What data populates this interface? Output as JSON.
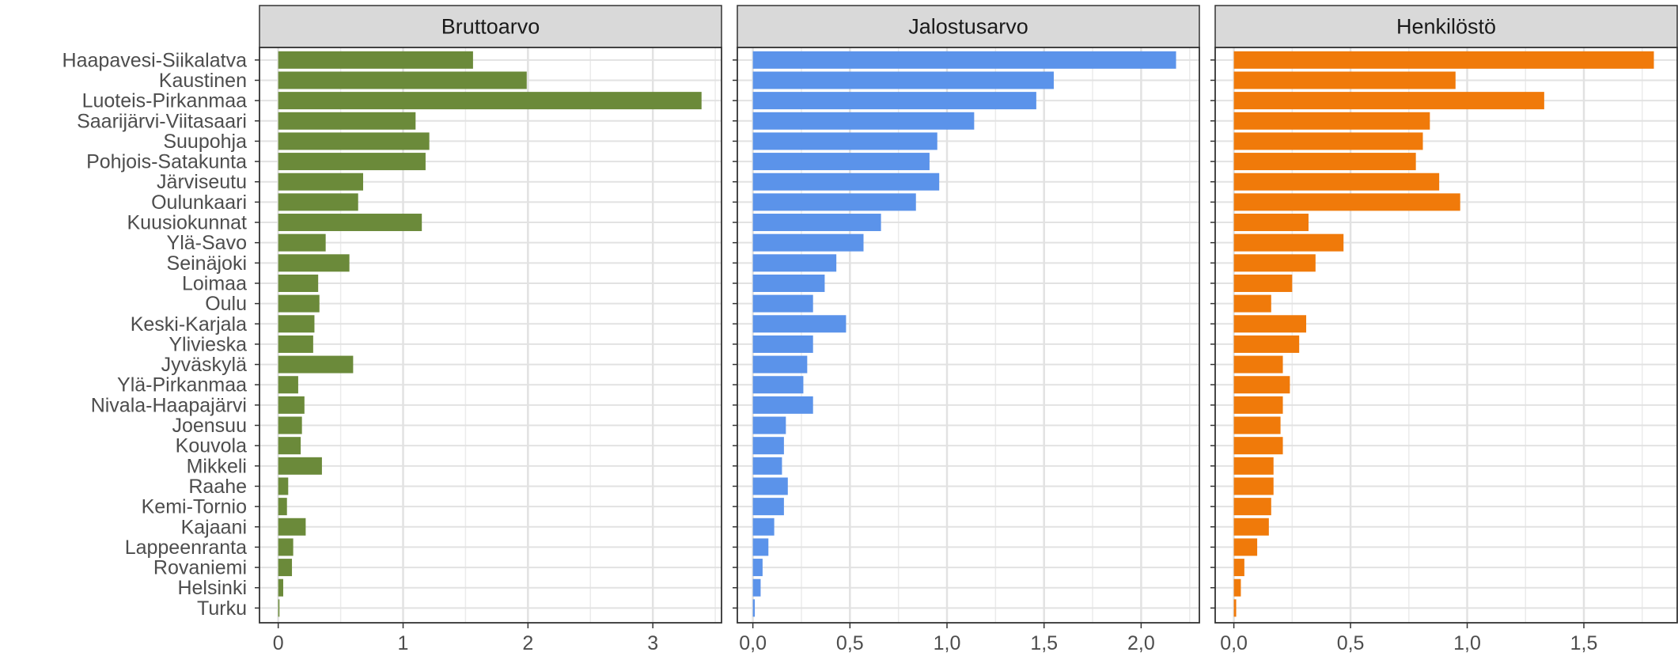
{
  "chart_data": {
    "type": "bar",
    "orientation": "horizontal",
    "layout": "faceted",
    "grid": true,
    "categories": [
      "Haapavesi-Siikalatva",
      "Kaustinen",
      "Luoteis-Pirkanmaa",
      "Saarijärvi-Viitasaari",
      "Suupohja",
      "Pohjois-Satakunta",
      "Järviseutu",
      "Oulunkaari",
      "Kuusiokunnat",
      "Ylä-Savo",
      "Seinäjoki",
      "Loimaa",
      "Oulu",
      "Keski-Karjala",
      "Ylivieska",
      "Jyväskylä",
      "Ylä-Pirkanmaa",
      "Nivala-Haapajärvi",
      "Joensuu",
      "Kouvola",
      "Mikkeli",
      "Raahe",
      "Kemi-Tornio",
      "Kajaani",
      "Lappeenranta",
      "Rovaniemi",
      "Helsinki",
      "Turku"
    ],
    "panels": [
      {
        "title": "Bruttoarvo",
        "color": "#6b8a3a",
        "xlim": [
          -0.15,
          3.55
        ],
        "ticks": [
          0,
          1,
          2,
          3
        ],
        "tick_labels": [
          "0",
          "1",
          "2",
          "3"
        ],
        "values": [
          1.56,
          1.99,
          3.39,
          1.1,
          1.21,
          1.18,
          0.68,
          0.64,
          1.15,
          0.38,
          0.57,
          0.32,
          0.33,
          0.29,
          0.28,
          0.6,
          0.16,
          0.21,
          0.19,
          0.18,
          0.35,
          0.08,
          0.07,
          0.22,
          0.12,
          0.11,
          0.04,
          0.01
        ]
      },
      {
        "title": "Jalostusarvo",
        "color": "#5b93ea",
        "xlim": [
          -0.08,
          2.3
        ],
        "ticks": [
          0,
          0.5,
          1,
          1.5,
          2
        ],
        "tick_labels": [
          "0,0",
          "0,5",
          "1,0",
          "1,5",
          "2,0"
        ],
        "values": [
          2.18,
          1.55,
          1.46,
          1.14,
          0.95,
          0.91,
          0.96,
          0.84,
          0.66,
          0.57,
          0.43,
          0.37,
          0.31,
          0.48,
          0.31,
          0.28,
          0.26,
          0.31,
          0.17,
          0.16,
          0.15,
          0.18,
          0.16,
          0.11,
          0.08,
          0.05,
          0.04,
          0.01
        ]
      },
      {
        "title": "Henkilöstö",
        "color": "#f07a0a",
        "xlim": [
          -0.08,
          1.9
        ],
        "ticks": [
          0,
          0.5,
          1,
          1.5
        ],
        "tick_labels": [
          "0,0",
          "0,5",
          "1,0",
          "1,5"
        ],
        "values": [
          1.8,
          0.95,
          1.33,
          0.84,
          0.81,
          0.78,
          0.88,
          0.97,
          0.32,
          0.47,
          0.35,
          0.25,
          0.16,
          0.31,
          0.28,
          0.21,
          0.24,
          0.21,
          0.2,
          0.21,
          0.17,
          0.17,
          0.16,
          0.15,
          0.1,
          0.045,
          0.03,
          0.01
        ]
      }
    ]
  }
}
